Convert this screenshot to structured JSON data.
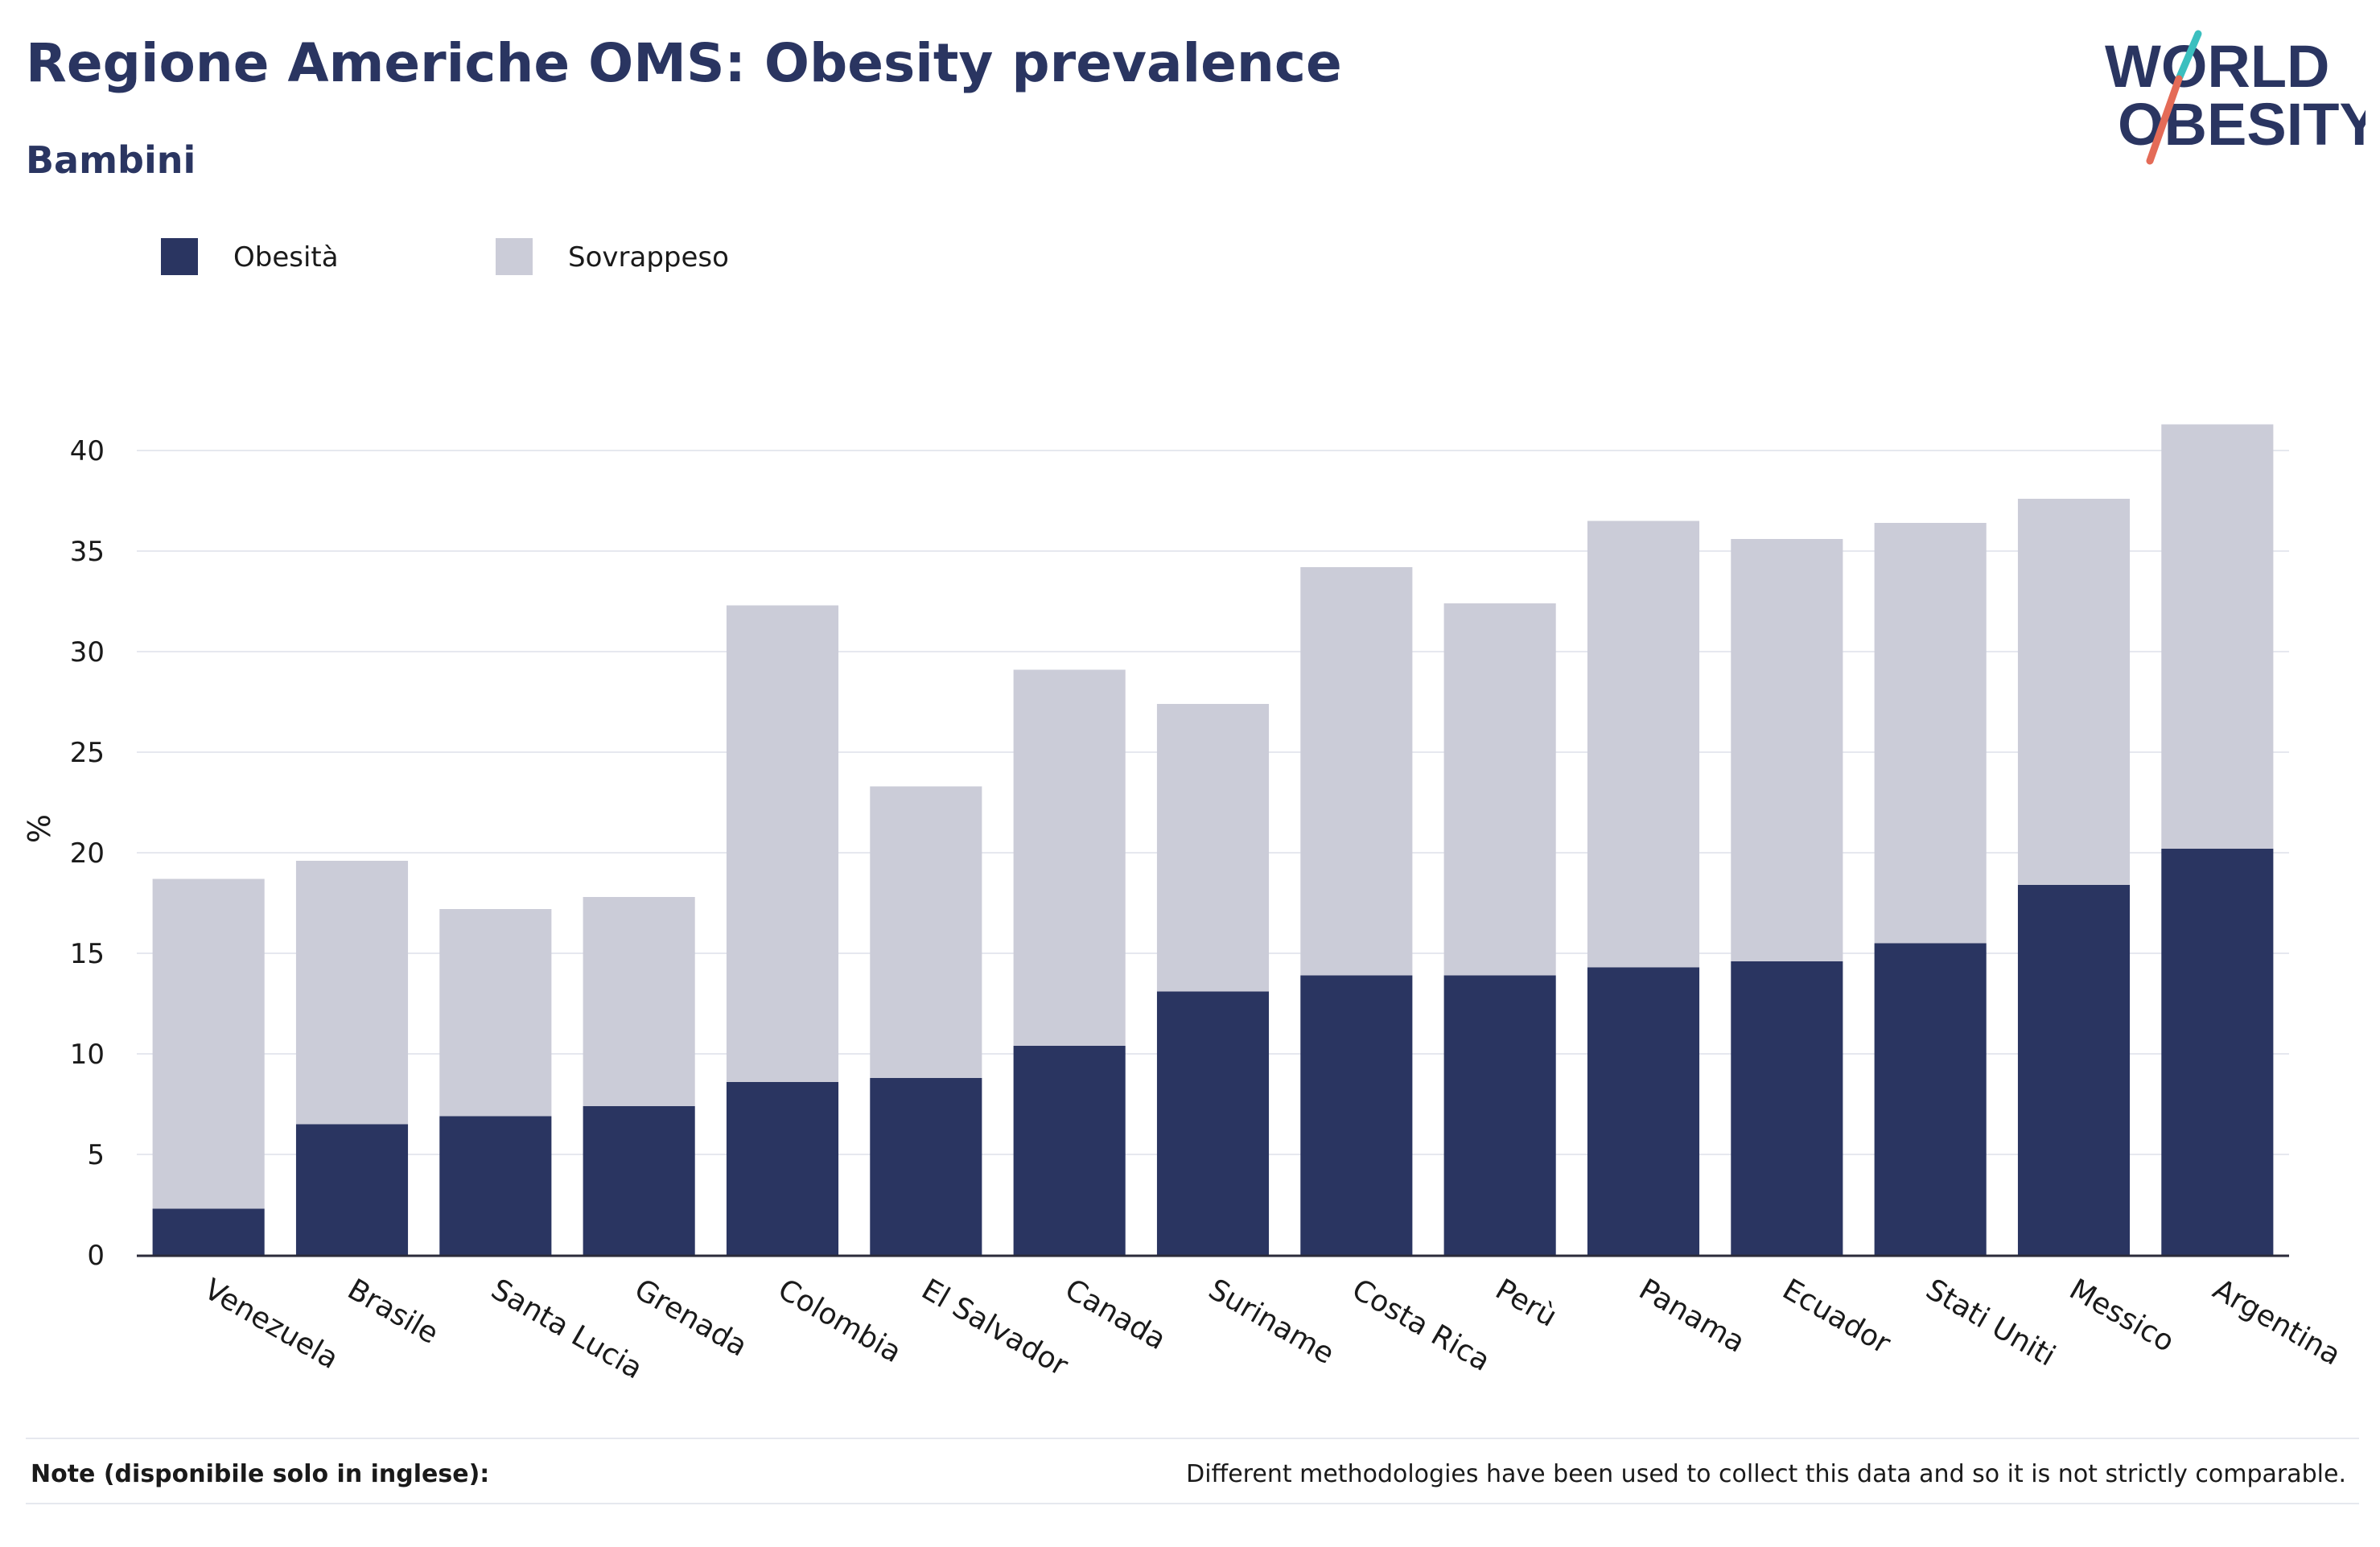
{
  "chart_data": {
    "type": "bar",
    "stacked": true,
    "title": "Regione Americhe OMS: Obesity prevalence",
    "subtitle": "Bambini",
    "ylabel": "%",
    "xlabel": "",
    "ylim": [
      0,
      42
    ],
    "yticks": [
      0,
      5,
      10,
      15,
      20,
      25,
      30,
      35,
      40
    ],
    "grid": true,
    "legend_position": "top-left",
    "categories": [
      "Venezuela",
      "Brasile",
      "Santa Lucia",
      "Grenada",
      "Colombia",
      "El Salvador",
      "Canada",
      "Suriname",
      "Costa Rica",
      "Perù",
      "Panama",
      "Ecuador",
      "Stati Uniti",
      "Messico",
      "Argentina"
    ],
    "series": [
      {
        "name": "Obesità",
        "color": "#2a3561",
        "values": [
          2.3,
          6.5,
          6.9,
          7.4,
          8.6,
          8.8,
          10.4,
          13.1,
          13.9,
          13.9,
          14.3,
          14.6,
          15.5,
          18.4,
          20.2
        ]
      },
      {
        "name": "Sovrappeso",
        "color": "#cbccd8",
        "values": [
          16.4,
          13.1,
          10.3,
          10.4,
          23.7,
          14.5,
          18.7,
          14.3,
          20.3,
          18.5,
          22.2,
          21.0,
          20.9,
          19.2,
          21.1
        ]
      }
    ]
  },
  "logo": {
    "line1": "WORLD",
    "line2": "OBESITY",
    "color": "#2a3561",
    "accent_top": "#3bbfbf",
    "accent_bottom": "#e46b57"
  },
  "footer": {
    "note_label": "Note (disponibile solo in inglese):",
    "note_text": "Different methodologies have been used to collect this data and so it is not strictly comparable."
  }
}
